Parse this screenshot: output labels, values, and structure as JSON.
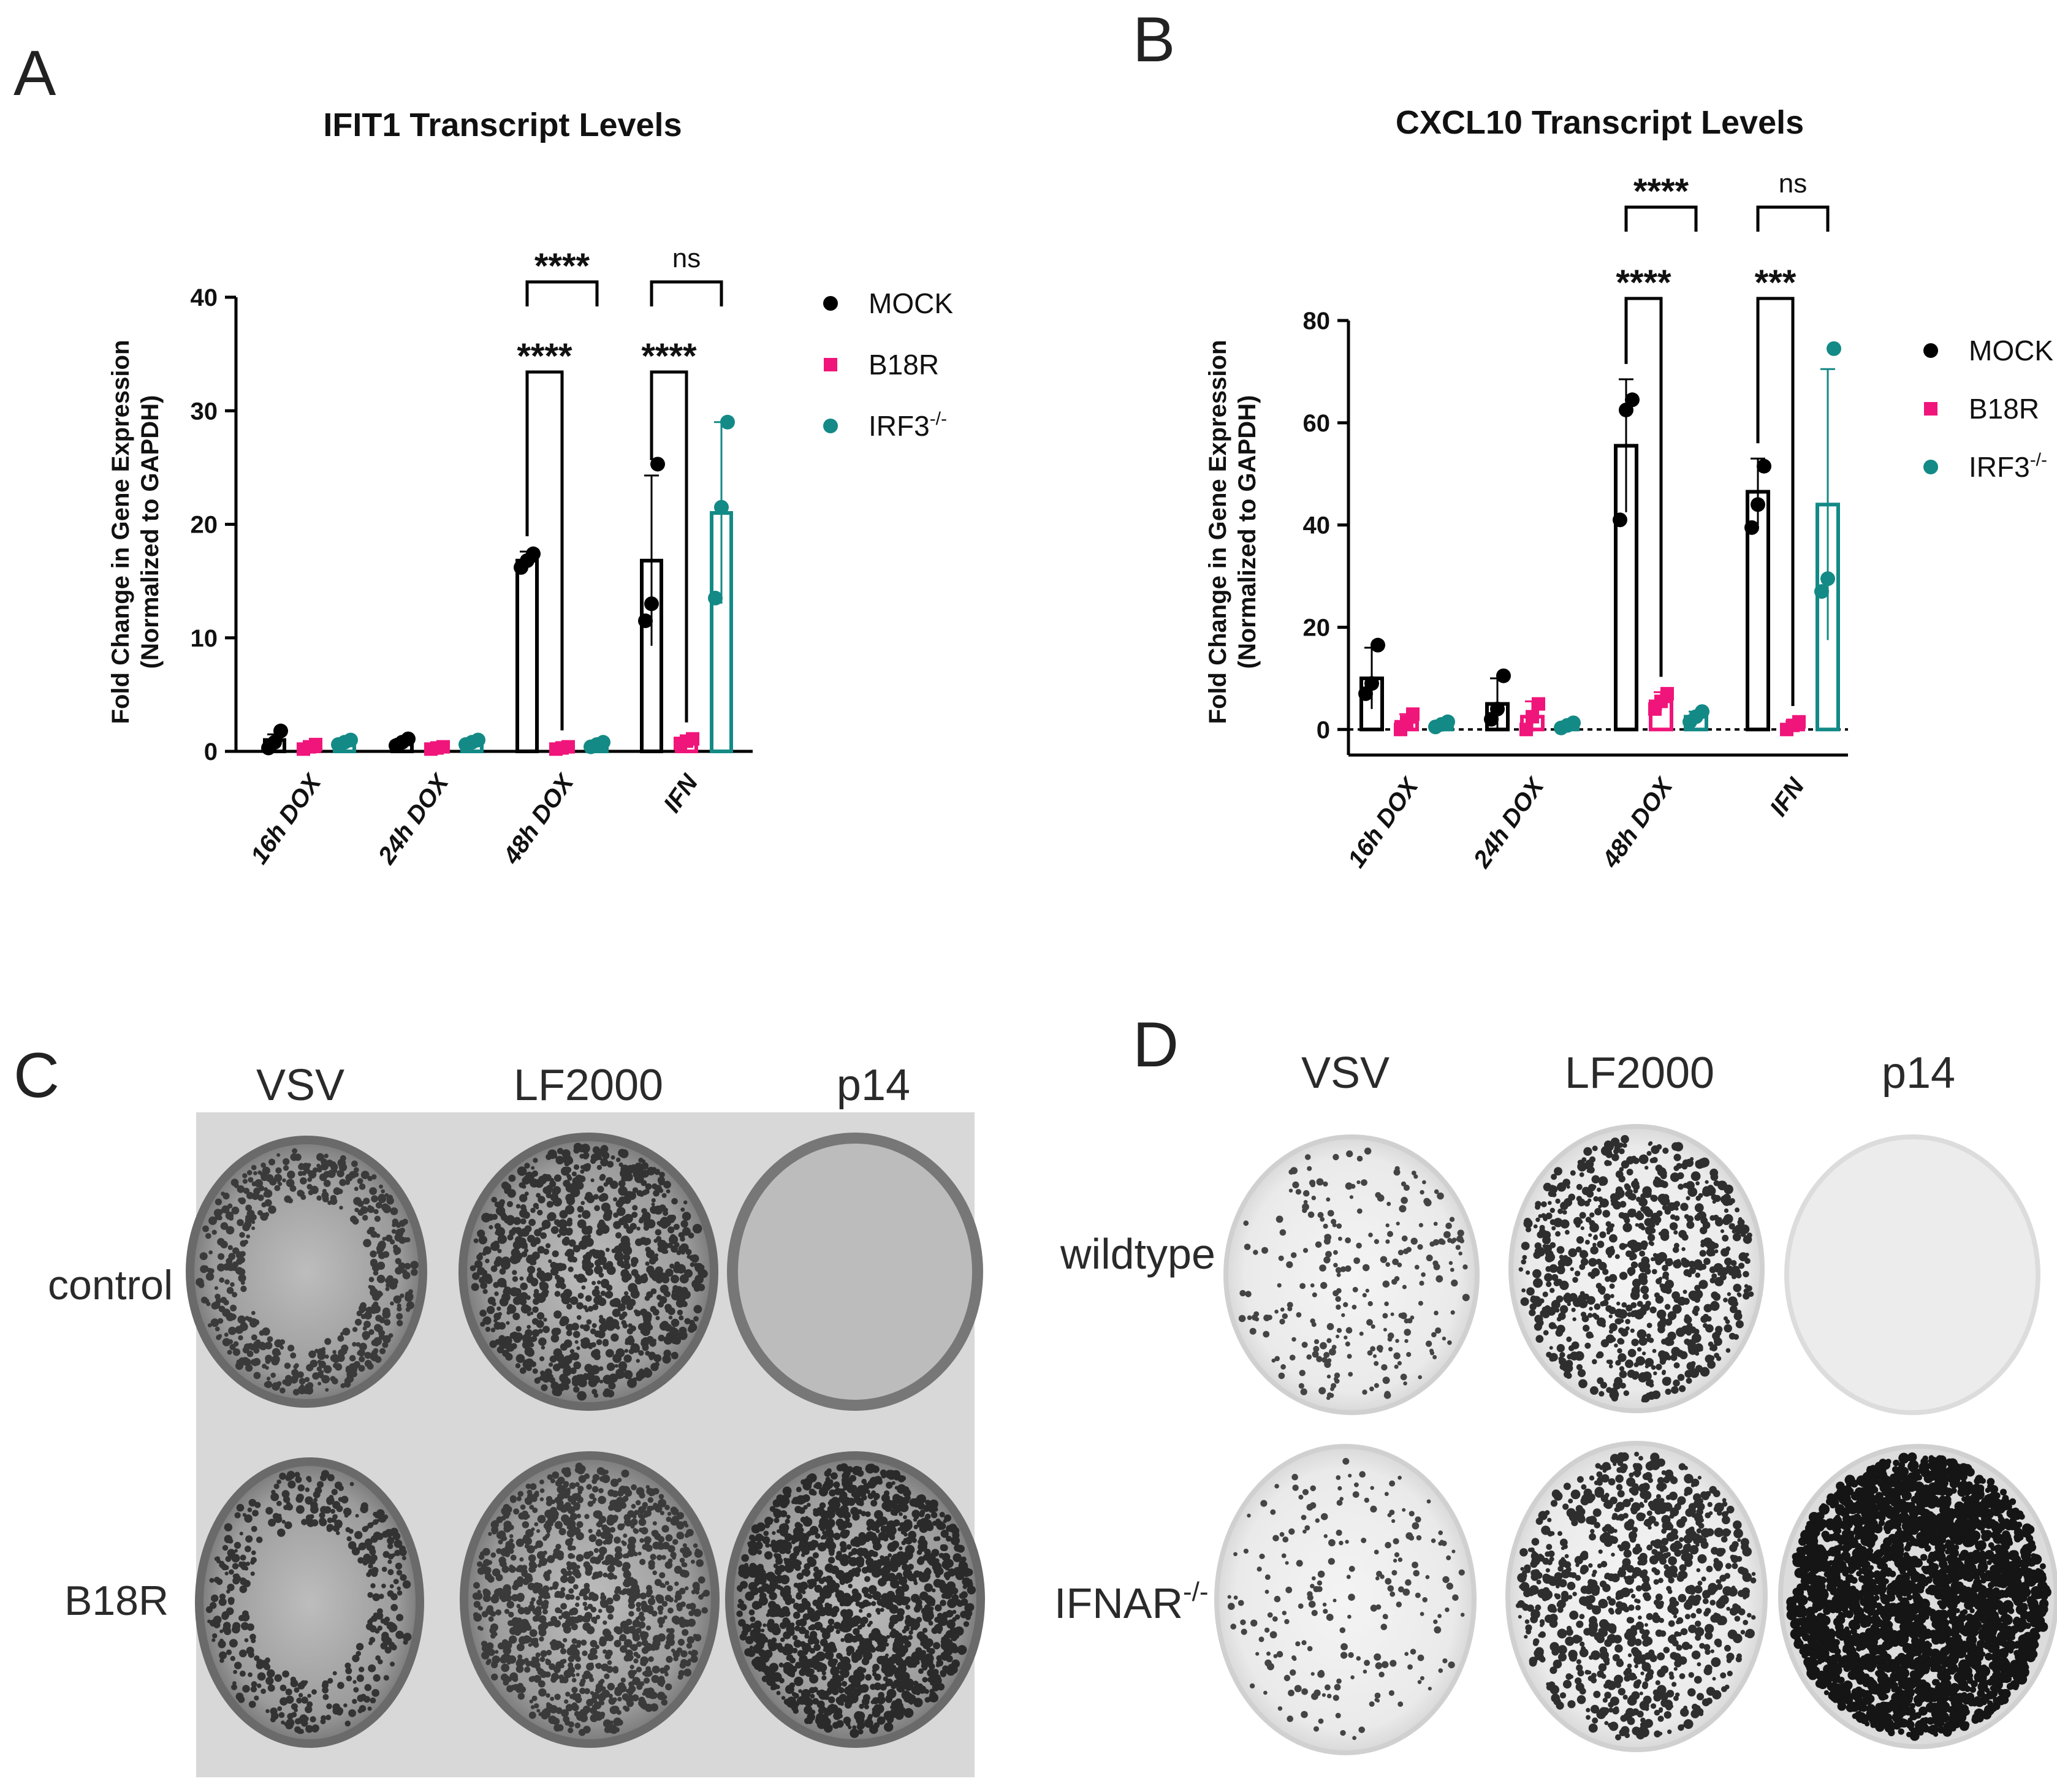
{
  "panels": {
    "A": {
      "letter": "A"
    },
    "B": {
      "letter": "B"
    },
    "C": {
      "letter": "C",
      "columns": [
        "VSV",
        "LF2000",
        "p14"
      ],
      "rows": [
        "control",
        "B18R"
      ]
    },
    "D": {
      "letter": "D",
      "columns": [
        "VSV",
        "LF2000",
        "p14"
      ],
      "rows": [
        "wildtype",
        "IFNAR"
      ],
      "row_superscripts": [
        "",
        "-/-"
      ]
    }
  },
  "colors": {
    "MOCK": "#000000",
    "B18R": "#f0157a",
    "IRF3": "#138a86"
  },
  "chart_data": [
    {
      "type": "bar",
      "title": "IFIT1 Transcript Levels",
      "ylabel_line1": "Fold Change in Gene Expression",
      "ylabel_line2": "(Normalized to GAPDH)",
      "categories": [
        "16h DOX",
        "24h DOX",
        "48h DOX",
        "IFN"
      ],
      "ylim": [
        0,
        40
      ],
      "yticks": [
        "0",
        "10",
        "20",
        "30",
        "40"
      ],
      "series": [
        {
          "name": "MOCK",
          "superscript": "",
          "values": [
            1.0,
            0.8,
            16.8,
            16.8
          ],
          "error": [
            0.5,
            0.3,
            0.8,
            7.5
          ],
          "points": [
            [
              0.3,
              0.8,
              1.8
            ],
            [
              0.5,
              0.8,
              1.1
            ],
            [
              16.2,
              16.8,
              17.4
            ],
            [
              11.5,
              13.0,
              25.3
            ]
          ]
        },
        {
          "name": "B18R",
          "superscript": "",
          "values": [
            0.4,
            0.3,
            0.3,
            0.9
          ],
          "error": [
            0.3,
            0.2,
            0.2,
            0.3
          ],
          "points": [
            [
              0.2,
              0.4,
              0.6
            ],
            [
              0.2,
              0.3,
              0.4
            ],
            [
              0.2,
              0.3,
              0.4
            ],
            [
              0.7,
              0.9,
              1.1
            ]
          ]
        },
        {
          "name": "IRF3",
          "superscript": "-/-",
          "values": [
            0.8,
            0.8,
            0.6,
            21.0
          ],
          "error": [
            0.3,
            0.3,
            0.2,
            8.0
          ],
          "points": [
            [
              0.6,
              0.8,
              1.0
            ],
            [
              0.6,
              0.8,
              1.0
            ],
            [
              0.4,
              0.6,
              0.8
            ],
            [
              13.5,
              21.5,
              29.0
            ]
          ]
        }
      ],
      "significance": [
        {
          "category": 2,
          "from": 0,
          "to": 1,
          "label": "****"
        },
        {
          "category": 2,
          "from": 0,
          "to": 2,
          "label": "****"
        },
        {
          "category": 3,
          "from": 0,
          "to": 1,
          "label": "****"
        },
        {
          "category": 3,
          "from": 0,
          "to": 2,
          "label": "ns"
        }
      ],
      "legend_position": "right",
      "grid": false
    },
    {
      "type": "bar",
      "title": "CXCL10 Transcript Levels",
      "ylabel_line1": "Fold Change in Gene Expression",
      "ylabel_line2": "(Normalized to GAPDH)",
      "categories": [
        "16h DOX",
        "24h DOX",
        "48h DOX",
        "IFN"
      ],
      "ylim": [
        -5,
        80
      ],
      "yticks": [
        "0",
        "20",
        "40",
        "60",
        "80"
      ],
      "series": [
        {
          "name": "MOCK",
          "superscript": "",
          "values": [
            10.0,
            5.0,
            55.5,
            46.5
          ],
          "error": [
            6.0,
            5.0,
            13.0,
            6.5
          ],
          "points": [
            [
              7.0,
              9.0,
              16.5
            ],
            [
              2.0,
              4.0,
              10.5
            ],
            [
              41.0,
              62.5,
              64.5
            ],
            [
              39.5,
              44.0,
              51.5
            ]
          ]
        },
        {
          "name": "B18R",
          "superscript": "",
          "values": [
            1.5,
            2.5,
            5.5,
            0.8
          ],
          "error": [
            1.5,
            3.0,
            1.8,
            0.8
          ],
          "points": [
            [
              0.0,
              1.5,
              3.0
            ],
            [
              0.0,
              2.5,
              5.0
            ],
            [
              4.0,
              5.5,
              7.0
            ],
            [
              0.0,
              0.8,
              1.5
            ]
          ]
        },
        {
          "name": "IRF3",
          "superscript": "-/-",
          "values": [
            1.0,
            0.8,
            2.5,
            44.0
          ],
          "error": [
            0.5,
            0.5,
            1.0,
            26.5
          ],
          "points": [
            [
              0.5,
              1.0,
              1.5
            ],
            [
              0.3,
              0.8,
              1.3
            ],
            [
              1.5,
              2.5,
              3.5
            ],
            [
              27.0,
              29.5,
              74.5
            ]
          ]
        }
      ],
      "significance": [
        {
          "category": 2,
          "from": 0,
          "to": 1,
          "label": "****"
        },
        {
          "category": 2,
          "from": 0,
          "to": 2,
          "label": "****"
        },
        {
          "category": 3,
          "from": 0,
          "to": 1,
          "label": "***"
        },
        {
          "category": 3,
          "from": 0,
          "to": 2,
          "label": "ns"
        }
      ],
      "reference_line": 0,
      "legend_position": "right",
      "grid": false
    }
  ]
}
